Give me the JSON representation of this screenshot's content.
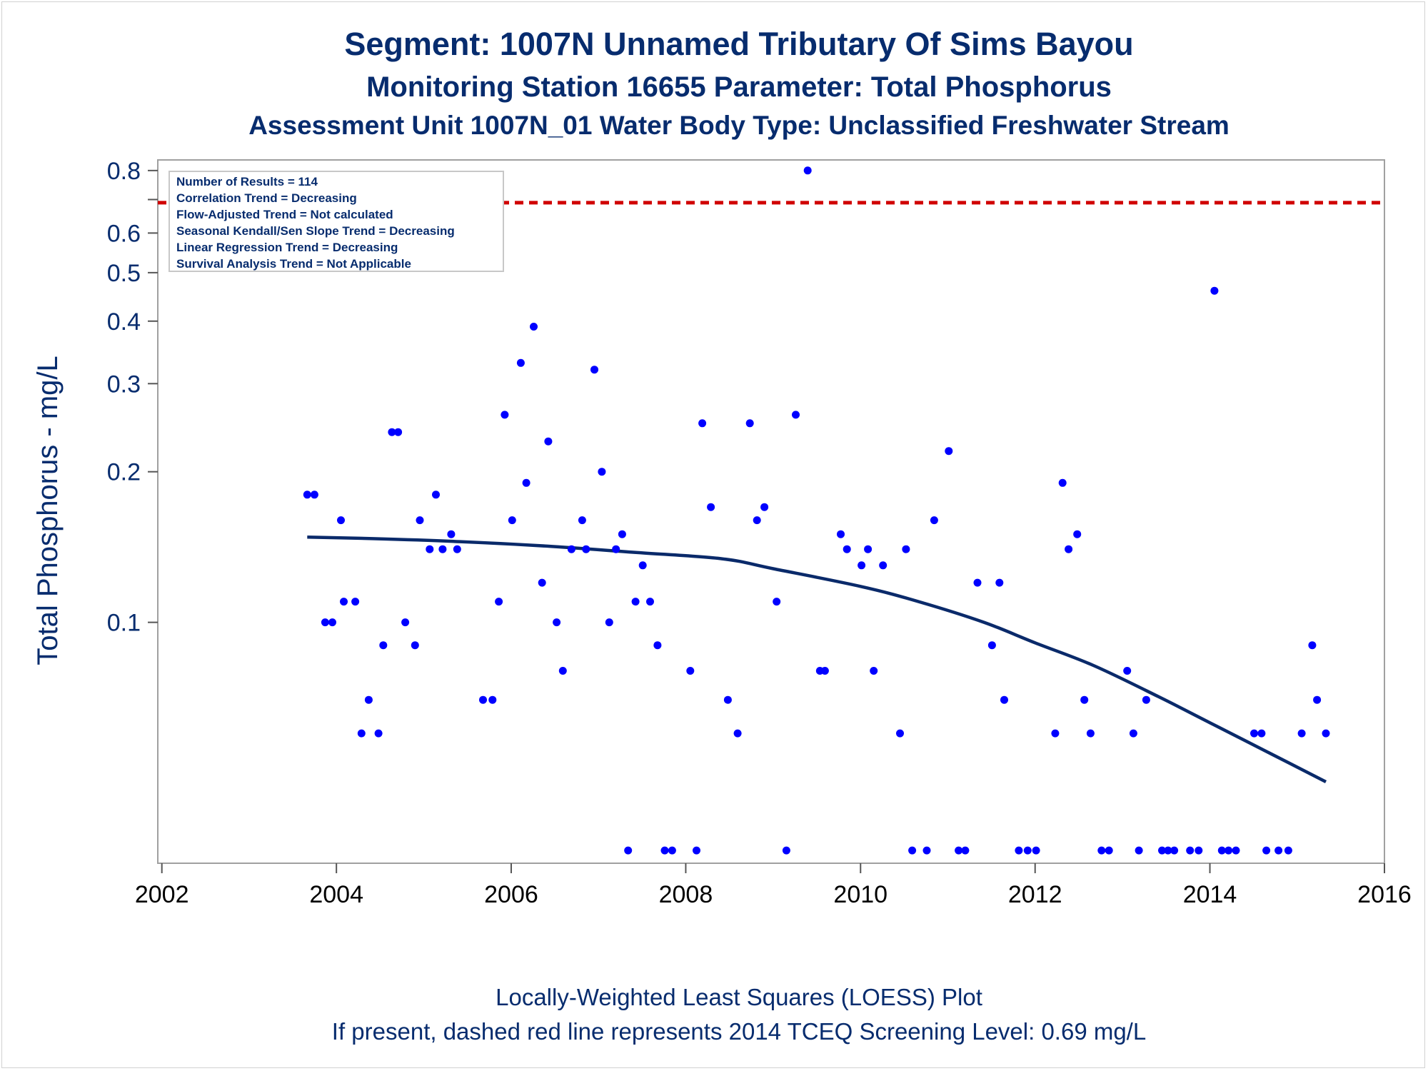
{
  "chart_data": {
    "type": "scatter",
    "title": "Segment: 1007N  Unnamed Tributary Of Sims Bayou",
    "subtitle": "Monitoring Station 16655 Parameter: Total Phosphorus",
    "subtitle2": "Assessment Unit 1007N_01   Water Body Type: Unclassified Freshwater Stream",
    "ylabel": "Total Phosphorus - mg/L",
    "footnote1": "Locally-Weighted Least Squares (LOESS) Plot",
    "footnote2": "If present, dashed red line represents 2014 TCEQ Screening Level: 0.69 mg/L",
    "x_axis": {
      "type": "date",
      "range": [
        "2001-12-15",
        "2016-01-01"
      ],
      "ticks": [
        "2002",
        "2004",
        "2006",
        "2008",
        "2010",
        "2012",
        "2014",
        "2016"
      ]
    },
    "y_axis": {
      "scale": "log",
      "range": [
        0.033,
        0.84
      ],
      "ticks": [
        "0.1",
        "0.2",
        "0.3",
        "0.4",
        "0.5",
        "0.6",
        "0.8"
      ],
      "minor_ticks": [
        0.7
      ]
    },
    "grid": false,
    "legend_placement": "top-left",
    "info_box": [
      "Number of Results = 114",
      "Correlation Trend = Decreasing",
      "Flow-Adjusted Trend = Not calculated",
      "Seasonal Kendall/Sen Slope Trend = Decreasing",
      "Linear Regression Trend = Decreasing",
      "Survival Analysis Trend = Not Applicable"
    ],
    "screening_level": {
      "value": 0.69,
      "color": "#d00000"
    },
    "colors": {
      "points": "#0000ff",
      "loess": "#0a2a6a",
      "text": "#072c6e"
    },
    "points": [
      {
        "x": "2003-09-01",
        "y": 0.18
      },
      {
        "x": "2003-10-01",
        "y": 0.18
      },
      {
        "x": "2003-11-15",
        "y": 0.1
      },
      {
        "x": "2003-12-15",
        "y": 0.1
      },
      {
        "x": "2004-01-20",
        "y": 0.16
      },
      {
        "x": "2004-02-01",
        "y": 0.11
      },
      {
        "x": "2004-03-20",
        "y": 0.11
      },
      {
        "x": "2004-04-15",
        "y": 0.06
      },
      {
        "x": "2004-05-15",
        "y": 0.07
      },
      {
        "x": "2004-06-25",
        "y": 0.06
      },
      {
        "x": "2004-07-15",
        "y": 0.09
      },
      {
        "x": "2004-08-20",
        "y": 0.24
      },
      {
        "x": "2004-09-15",
        "y": 0.24
      },
      {
        "x": "2004-10-15",
        "y": 0.1
      },
      {
        "x": "2004-11-25",
        "y": 0.09
      },
      {
        "x": "2004-12-15",
        "y": 0.16
      },
      {
        "x": "2005-01-25",
        "y": 0.14
      },
      {
        "x": "2005-02-20",
        "y": 0.18
      },
      {
        "x": "2005-03-20",
        "y": 0.14
      },
      {
        "x": "2005-04-25",
        "y": 0.15
      },
      {
        "x": "2005-05-20",
        "y": 0.14
      },
      {
        "x": "2005-09-05",
        "y": 0.07
      },
      {
        "x": "2005-10-15",
        "y": 0.07
      },
      {
        "x": "2005-11-10",
        "y": 0.11
      },
      {
        "x": "2005-12-05",
        "y": 0.26
      },
      {
        "x": "2006-01-05",
        "y": 0.16
      },
      {
        "x": "2006-02-10",
        "y": 0.33
      },
      {
        "x": "2006-03-05",
        "y": 0.19
      },
      {
        "x": "2006-04-05",
        "y": 0.39
      },
      {
        "x": "2006-05-10",
        "y": 0.12
      },
      {
        "x": "2006-06-05",
        "y": 0.23
      },
      {
        "x": "2006-07-10",
        "y": 0.1
      },
      {
        "x": "2006-08-05",
        "y": 0.08
      },
      {
        "x": "2006-09-10",
        "y": 0.14
      },
      {
        "x": "2006-10-25",
        "y": 0.16
      },
      {
        "x": "2006-11-10",
        "y": 0.14
      },
      {
        "x": "2006-12-15",
        "y": 0.32
      },
      {
        "x": "2007-01-15",
        "y": 0.2
      },
      {
        "x": "2007-02-15",
        "y": 0.1
      },
      {
        "x": "2007-03-15",
        "y": 0.14
      },
      {
        "x": "2007-04-10",
        "y": 0.15
      },
      {
        "x": "2007-05-05",
        "y": 0.035
      },
      {
        "x": "2007-06-05",
        "y": 0.11
      },
      {
        "x": "2007-07-05",
        "y": 0.13
      },
      {
        "x": "2007-08-05",
        "y": 0.11
      },
      {
        "x": "2007-09-05",
        "y": 0.09
      },
      {
        "x": "2007-10-05",
        "y": 0.035
      },
      {
        "x": "2007-11-05",
        "y": 0.035
      },
      {
        "x": "2008-01-20",
        "y": 0.08
      },
      {
        "x": "2008-02-15",
        "y": 0.035
      },
      {
        "x": "2008-03-10",
        "y": 0.25
      },
      {
        "x": "2008-04-15",
        "y": 0.17
      },
      {
        "x": "2008-06-25",
        "y": 0.07
      },
      {
        "x": "2008-08-05",
        "y": 0.06
      },
      {
        "x": "2008-09-25",
        "y": 0.25
      },
      {
        "x": "2008-10-25",
        "y": 0.16
      },
      {
        "x": "2008-11-25",
        "y": 0.17
      },
      {
        "x": "2009-01-15",
        "y": 0.11
      },
      {
        "x": "2009-02-25",
        "y": 0.035
      },
      {
        "x": "2009-04-05",
        "y": 0.26
      },
      {
        "x": "2009-05-25",
        "y": 0.8
      },
      {
        "x": "2009-07-15",
        "y": 0.08
      },
      {
        "x": "2009-08-05",
        "y": 0.08
      },
      {
        "x": "2009-10-10",
        "y": 0.15
      },
      {
        "x": "2009-11-05",
        "y": 0.14
      },
      {
        "x": "2010-01-05",
        "y": 0.13
      },
      {
        "x": "2010-02-01",
        "y": 0.14
      },
      {
        "x": "2010-02-25",
        "y": 0.08
      },
      {
        "x": "2010-04-05",
        "y": 0.13
      },
      {
        "x": "2010-06-15",
        "y": 0.06
      },
      {
        "x": "2010-07-10",
        "y": 0.14
      },
      {
        "x": "2010-08-05",
        "y": 0.035
      },
      {
        "x": "2010-10-05",
        "y": 0.035
      },
      {
        "x": "2010-11-05",
        "y": 0.16
      },
      {
        "x": "2011-01-05",
        "y": 0.22
      },
      {
        "x": "2011-02-15",
        "y": 0.035
      },
      {
        "x": "2011-03-15",
        "y": 0.035
      },
      {
        "x": "2011-05-05",
        "y": 0.12
      },
      {
        "x": "2011-07-05",
        "y": 0.09
      },
      {
        "x": "2011-08-05",
        "y": 0.12
      },
      {
        "x": "2011-08-25",
        "y": 0.07
      },
      {
        "x": "2011-10-25",
        "y": 0.035
      },
      {
        "x": "2011-12-01",
        "y": 0.035
      },
      {
        "x": "2012-01-05",
        "y": 0.035
      },
      {
        "x": "2012-03-25",
        "y": 0.06
      },
      {
        "x": "2012-04-25",
        "y": 0.19
      },
      {
        "x": "2012-05-20",
        "y": 0.14
      },
      {
        "x": "2012-06-25",
        "y": 0.15
      },
      {
        "x": "2012-07-25",
        "y": 0.07
      },
      {
        "x": "2012-08-20",
        "y": 0.06
      },
      {
        "x": "2012-10-05",
        "y": 0.035
      },
      {
        "x": "2012-11-05",
        "y": 0.035
      },
      {
        "x": "2013-01-20",
        "y": 0.08
      },
      {
        "x": "2013-02-15",
        "y": 0.06
      },
      {
        "x": "2013-03-10",
        "y": 0.035
      },
      {
        "x": "2013-04-10",
        "y": 0.07
      },
      {
        "x": "2013-06-15",
        "y": 0.035
      },
      {
        "x": "2013-07-10",
        "y": 0.035
      },
      {
        "x": "2013-08-05",
        "y": 0.035
      },
      {
        "x": "2013-10-10",
        "y": 0.035
      },
      {
        "x": "2013-11-15",
        "y": 0.035
      },
      {
        "x": "2014-01-20",
        "y": 0.46
      },
      {
        "x": "2014-02-20",
        "y": 0.035
      },
      {
        "x": "2014-03-20",
        "y": 0.035
      },
      {
        "x": "2014-04-20",
        "y": 0.035
      },
      {
        "x": "2014-07-05",
        "y": 0.06
      },
      {
        "x": "2014-08-05",
        "y": 0.06
      },
      {
        "x": "2014-08-25",
        "y": 0.035
      },
      {
        "x": "2014-10-15",
        "y": 0.035
      },
      {
        "x": "2014-11-25",
        "y": 0.035
      },
      {
        "x": "2015-01-20",
        "y": 0.06
      },
      {
        "x": "2015-03-05",
        "y": 0.09
      },
      {
        "x": "2015-03-25",
        "y": 0.07
      },
      {
        "x": "2015-05-01",
        "y": 0.06
      }
    ],
    "loess_curve": [
      {
        "x": "2003-09-01",
        "y": 0.148
      },
      {
        "x": "2004-06-01",
        "y": 0.147
      },
      {
        "x": "2005-06-01",
        "y": 0.145
      },
      {
        "x": "2006-06-01",
        "y": 0.142
      },
      {
        "x": "2007-06-01",
        "y": 0.138
      },
      {
        "x": "2008-06-01",
        "y": 0.134
      },
      {
        "x": "2009-01-01",
        "y": 0.128
      },
      {
        "x": "2010-01-01",
        "y": 0.118
      },
      {
        "x": "2010-09-01",
        "y": 0.11
      },
      {
        "x": "2011-06-01",
        "y": 0.1
      },
      {
        "x": "2012-01-01",
        "y": 0.091
      },
      {
        "x": "2012-09-01",
        "y": 0.082
      },
      {
        "x": "2013-06-01",
        "y": 0.071
      },
      {
        "x": "2014-01-01",
        "y": 0.063
      },
      {
        "x": "2014-09-01",
        "y": 0.055
      },
      {
        "x": "2015-05-01",
        "y": 0.048
      }
    ]
  }
}
